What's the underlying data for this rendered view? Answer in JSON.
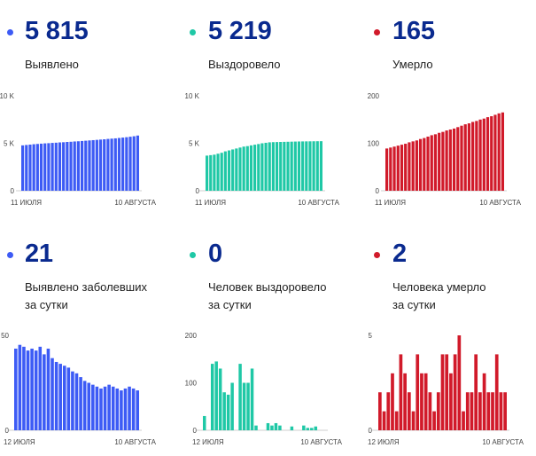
{
  "panels": [
    {
      "value": "5 815",
      "label_lines": [
        "Выявлено"
      ],
      "color": "#3d5bf5",
      "chart_data": {
        "type": "bar",
        "yticks": [
          "0",
          "5 K",
          "10 K"
        ],
        "ylim": [
          0,
          10000
        ],
        "xlabels": [
          "11 ИЮЛЯ",
          "10 АВГУСТА"
        ],
        "values": [
          4780,
          4820,
          4860,
          4900,
          4930,
          4960,
          4990,
          5010,
          5040,
          5060,
          5090,
          5110,
          5140,
          5160,
          5190,
          5210,
          5240,
          5270,
          5300,
          5330,
          5360,
          5390,
          5420,
          5460,
          5490,
          5520,
          5560,
          5600,
          5640,
          5690,
          5740,
          5815
        ]
      }
    },
    {
      "value": "5 219",
      "label_lines": [
        "Выздоровело"
      ],
      "color": "#1fc8a6",
      "chart_data": {
        "type": "bar",
        "yticks": [
          "0",
          "5 K",
          "10 K"
        ],
        "ylim": [
          0,
          10000
        ],
        "xlabels": [
          "11 ИЮЛЯ",
          "10 АВГУСТА"
        ],
        "values": [
          3700,
          3750,
          3800,
          3900,
          4000,
          4150,
          4250,
          4350,
          4450,
          4550,
          4650,
          4700,
          4780,
          4850,
          4920,
          5000,
          5050,
          5100,
          5120,
          5130,
          5140,
          5150,
          5160,
          5170,
          5180,
          5190,
          5195,
          5200,
          5205,
          5210,
          5215,
          5219
        ]
      }
    },
    {
      "value": "165",
      "label_lines": [
        "Умерло"
      ],
      "color": "#d11a2a",
      "chart_data": {
        "type": "bar",
        "yticks": [
          "0",
          "100",
          "200"
        ],
        "ylim": [
          0,
          200
        ],
        "xlabels": [
          "11 ИЮЛЯ",
          "10 АВГУСТА"
        ],
        "values": [
          89,
          91,
          93,
          95,
          97,
          99,
          102,
          104,
          106,
          109,
          111,
          114,
          117,
          119,
          122,
          124,
          127,
          129,
          131,
          134,
          137,
          140,
          142,
          145,
          147,
          150,
          152,
          155,
          157,
          160,
          163,
          165
        ]
      }
    },
    {
      "value": "21",
      "label_lines": [
        "Выявлено заболевших",
        "за сутки"
      ],
      "color": "#3d5bf5",
      "chart_data": {
        "type": "bar",
        "yticks": [
          "0",
          "50"
        ],
        "ylim": [
          0,
          50
        ],
        "xlabels": [
          "12 ИЮЛЯ",
          "10 АВГУСТА"
        ],
        "values": [
          43,
          45,
          44,
          42,
          43,
          42,
          44,
          40,
          43,
          38,
          36,
          35,
          34,
          33,
          31,
          30,
          28,
          26,
          25,
          24,
          23,
          22,
          23,
          24,
          23,
          22,
          21,
          22,
          23,
          22,
          21
        ]
      }
    },
    {
      "value": "0",
      "label_lines": [
        "Человек выздоровело",
        "за сутки"
      ],
      "color": "#1fc8a6",
      "chart_data": {
        "type": "bar",
        "yticks": [
          "0",
          "100",
          "200"
        ],
        "ylim": [
          0,
          200
        ],
        "xlabels": [
          "12 ИЮЛЯ",
          "10 АВГУСТА"
        ],
        "values": [
          30,
          0,
          140,
          145,
          130,
          80,
          75,
          100,
          0,
          140,
          100,
          100,
          130,
          10,
          0,
          0,
          15,
          10,
          15,
          10,
          0,
          0,
          8,
          0,
          0,
          10,
          5,
          5,
          8,
          0,
          0
        ]
      }
    },
    {
      "value": "2",
      "label_lines": [
        "Человека умерло",
        "за сутки"
      ],
      "color": "#d11a2a",
      "chart_data": {
        "type": "bar",
        "yticks": [
          "0",
          "5"
        ],
        "ylim": [
          0,
          5
        ],
        "xlabels": [
          "12 ИЮЛЯ",
          "10 АВГУСТА"
        ],
        "values": [
          2,
          1,
          2,
          3,
          1,
          4,
          3,
          2,
          1,
          4,
          3,
          3,
          2,
          1,
          2,
          4,
          4,
          3,
          4,
          5,
          1,
          2,
          2,
          4,
          2,
          3,
          2,
          2,
          4,
          2,
          2
        ]
      }
    }
  ]
}
